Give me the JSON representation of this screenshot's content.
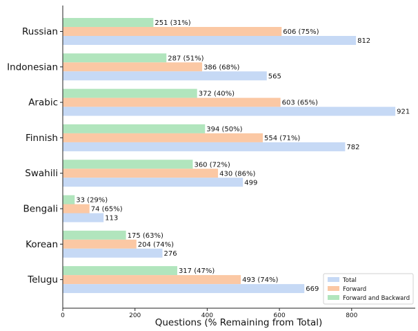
{
  "chart_data": {
    "type": "bar",
    "orientation": "horizontal",
    "title": "",
    "xlabel": "Questions (% Remaining from Total)",
    "ylabel": "",
    "xlim": [
      0,
      930
    ],
    "xticks": [
      0,
      200,
      400,
      600,
      800
    ],
    "grid": false,
    "legend_position": "bottom-right",
    "categories": [
      "Russian",
      "Indonesian",
      "Arabic",
      "Finnish",
      "Swahili",
      "Bengali",
      "Korean",
      "Telugu"
    ],
    "series": [
      {
        "name": "Total",
        "color": "#c6d9f5",
        "values": [
          812,
          565,
          921,
          782,
          499,
          113,
          276,
          669
        ],
        "labels": [
          "812",
          "565",
          "921",
          "782",
          "499",
          "113",
          "276",
          "669"
        ]
      },
      {
        "name": "Forward",
        "color": "#fbc8a4",
        "values": [
          606,
          386,
          603,
          554,
          430,
          74,
          204,
          493
        ],
        "labels": [
          "606 (75%)",
          "386 (68%)",
          "603 (65%)",
          "554 (71%)",
          "430 (86%)",
          "74 (65%)",
          "204 (74%)",
          "493 (74%)"
        ]
      },
      {
        "name": "Forward and Backward",
        "color": "#b1e5bd",
        "values": [
          251,
          287,
          372,
          394,
          360,
          33,
          175,
          317
        ],
        "labels": [
          "251 (31%)",
          "287 (51%)",
          "372 (40%)",
          "394 (50%)",
          "360 (72%)",
          "33 (29%)",
          "175 (63%)",
          "317 (47%)"
        ]
      }
    ]
  }
}
